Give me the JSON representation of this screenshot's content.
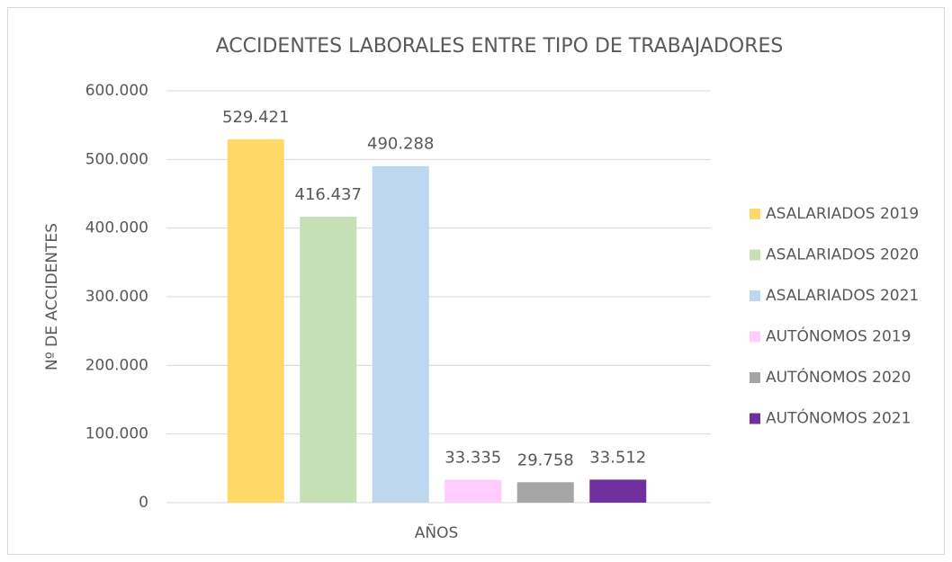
{
  "chart_data": {
    "type": "bar",
    "title": "ACCIDENTES LABORALES ENTRE TIPO DE TRABAJADORES",
    "x_label": "AÑOS",
    "y_label": "Nº DE ACCIDENTES",
    "categories": [
      null
    ],
    "series": [
      {
        "name": "ASALARIADOS 2019",
        "color": "#FFD966",
        "values": [
          529421
        ],
        "value_labels": [
          "529.421"
        ]
      },
      {
        "name": "ASALARIADOS 2020",
        "color": "#C5E0B4",
        "values": [
          416437
        ],
        "value_labels": [
          "416.437"
        ]
      },
      {
        "name": "ASALARIADOS 2021",
        "color": "#BDD7EE",
        "values": [
          490288
        ],
        "value_labels": [
          "490.288"
        ]
      },
      {
        "name": "AUTÓNOMOS 2019",
        "color": "#FFCCFF",
        "values": [
          33335
        ],
        "value_labels": [
          "33.335"
        ]
      },
      {
        "name": "AUTÓNOMOS 2020",
        "color": "#A5A5A5",
        "values": [
          29758
        ],
        "value_labels": [
          "29.758"
        ]
      },
      {
        "name": "AUTÓNOMOS 2021",
        "color": "#7030A0",
        "values": [
          33512
        ],
        "value_labels": [
          "33.512"
        ]
      }
    ],
    "ylim": [
      0,
      600000
    ],
    "yticks": [
      0,
      {
        "value": 100000,
        "label": "100.000"
      },
      {
        "value": 200000,
        "label": "200.000"
      },
      {
        "value": 300000,
        "label": "300.000"
      },
      {
        "value": 400000,
        "label": "400.000"
      },
      {
        "value": 500000,
        "label": "500.000"
      },
      {
        "value": 600000,
        "label": "600.000"
      }
    ],
    "grid": true,
    "legend": "right"
  }
}
